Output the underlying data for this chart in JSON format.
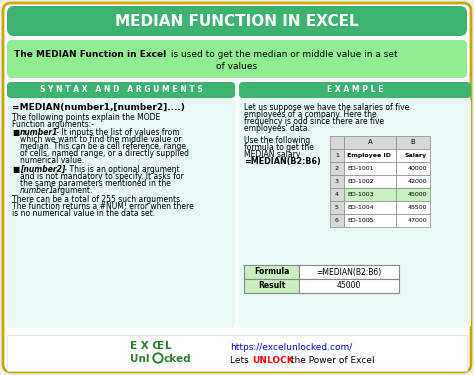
{
  "title": "MEDIAN FUNCTION IN EXCEL",
  "title_bg": "#3CB371",
  "subtitle_bg": "#90EE90",
  "section_header_bg": "#3CB371",
  "section_body_bg": "#E8F8F5",
  "main_bg": "#FFFFFF",
  "outer_bg": "#F0F0F0",
  "border_color": "#C8A800",
  "syntax_line": "=MEDIAN(number1,[number2]....)",
  "table_col_a": [
    "Employee ID",
    "ED-1001",
    "ED-1002",
    "ED-1003",
    "ED-1004",
    "ED-1005"
  ],
  "table_col_b": [
    "Salary",
    "40000",
    "42000",
    "45000",
    "45500",
    "47000"
  ],
  "table_rows": [
    "1",
    "2",
    "3",
    "4",
    "5",
    "6"
  ],
  "formula_label": "Formula",
  "formula_value": "=MEDIAN(B2:B6)",
  "result_label": "Result",
  "result_value": "45000",
  "highlight_row_idx": 3,
  "footer_url": "https://excelunlocked.com/",
  "green_dark": "#2E7D32",
  "green_medium": "#3CB371",
  "green_light": "#90EE90"
}
